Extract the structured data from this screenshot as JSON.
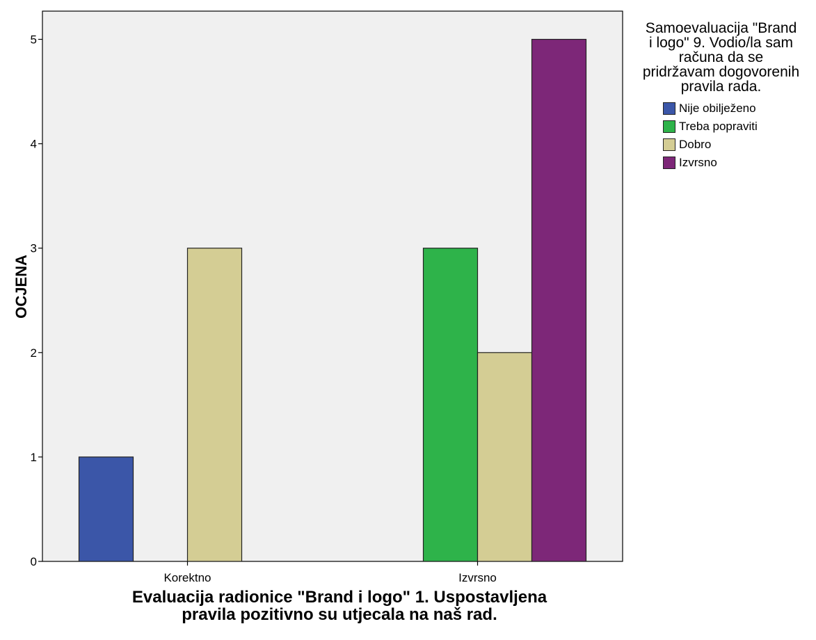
{
  "chart_data": {
    "type": "bar",
    "categories": [
      "Korektno",
      "Izvrsno"
    ],
    "series": [
      {
        "name": "Nije obilježeno",
        "color": "#3b56a8",
        "values": [
          1,
          null
        ]
      },
      {
        "name": "Treba popraviti",
        "color": "#2eb34a",
        "values": [
          null,
          3
        ]
      },
      {
        "name": "Dobro",
        "color": "#d4cd94",
        "values": [
          3,
          2
        ]
      },
      {
        "name": "Izvrsno",
        "color": "#7d2778",
        "values": [
          null,
          5
        ]
      }
    ],
    "xlabel": "Evaluacija radionice \"Brand i logo\" 1. Uspostavljena\npravila pozitivno su utjecala na naš rad.",
    "ylabel": "OCJENA",
    "ylim": [
      0,
      5.27
    ],
    "yticks": [
      0,
      1,
      2,
      3,
      4,
      5
    ],
    "grid": false,
    "plot_background": "#f0f0f0",
    "legend": {
      "title": "Samoevaluacija \"Brand\ni logo\" 9. Vodio/la sam\nračuna da se\npridržavam dogovorenih\npravila rada.",
      "placement": "right"
    }
  }
}
